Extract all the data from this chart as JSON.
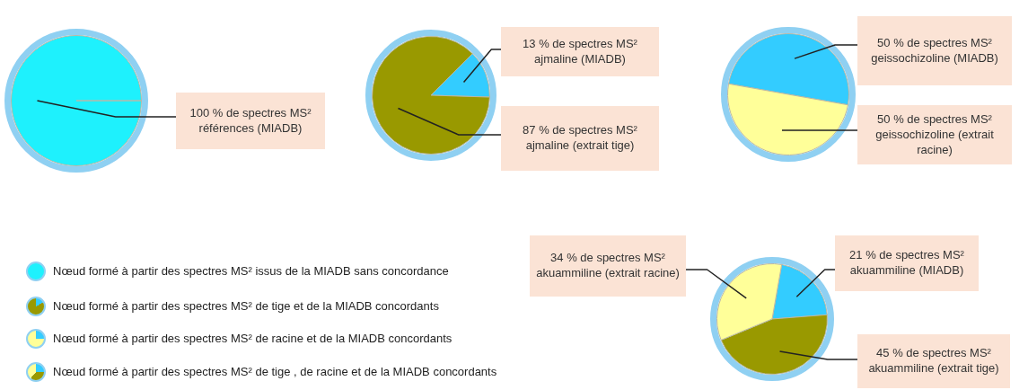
{
  "chart_data": [
    {
      "type": "pie",
      "categories": [
        null
      ],
      "values": [
        100
      ],
      "colors": [
        "#1ef1fd"
      ],
      "value_labels": [
        "100 % de spectres MS² références (MIADB)"
      ]
    },
    {
      "type": "pie",
      "categories": [
        null,
        null
      ],
      "values": [
        13,
        87
      ],
      "colors": [
        "#33ccff",
        "#999900"
      ],
      "value_labels": [
        "13 % de spectres MS² ajmaline (MIADB)",
        "87 % de spectres MS² ajmaline (extrait tige)"
      ]
    },
    {
      "type": "pie",
      "categories": [
        null,
        null
      ],
      "values": [
        50,
        50
      ],
      "colors": [
        "#33ccff",
        "#ffff99"
      ],
      "value_labels": [
        "50 % de spectres MS² geissochizoline (MIADB)",
        "50 % de spectres MS² geissochizoline (extrait racine)"
      ]
    },
    {
      "type": "pie",
      "categories": [
        null,
        null,
        null
      ],
      "values": [
        21,
        45,
        34
      ],
      "colors": [
        "#33ccff",
        "#999900",
        "#ffff99"
      ],
      "value_labels": [
        "21 % de spectres MS² akuammiline (MIADB)",
        "45 % de spectres MS² akuammiline (extrait tige)",
        "34 % de spectres MS² akuammiline (extrait racine)"
      ]
    },
    {
      "type": "other",
      "annotations": [
        "Nœud formé à partir des spectres MS² issus de la MIADB sans concordance",
        "Nœud formé à partir des spectres MS² de tige et de la MIADB concordants",
        "Nœud formé à partir des spectres MS² de racine et de la MIADB concordants",
        "Nœud formé à partir des spectres MS² de tige , de racine et de la MIADB concordants"
      ]
    }
  ]
}
